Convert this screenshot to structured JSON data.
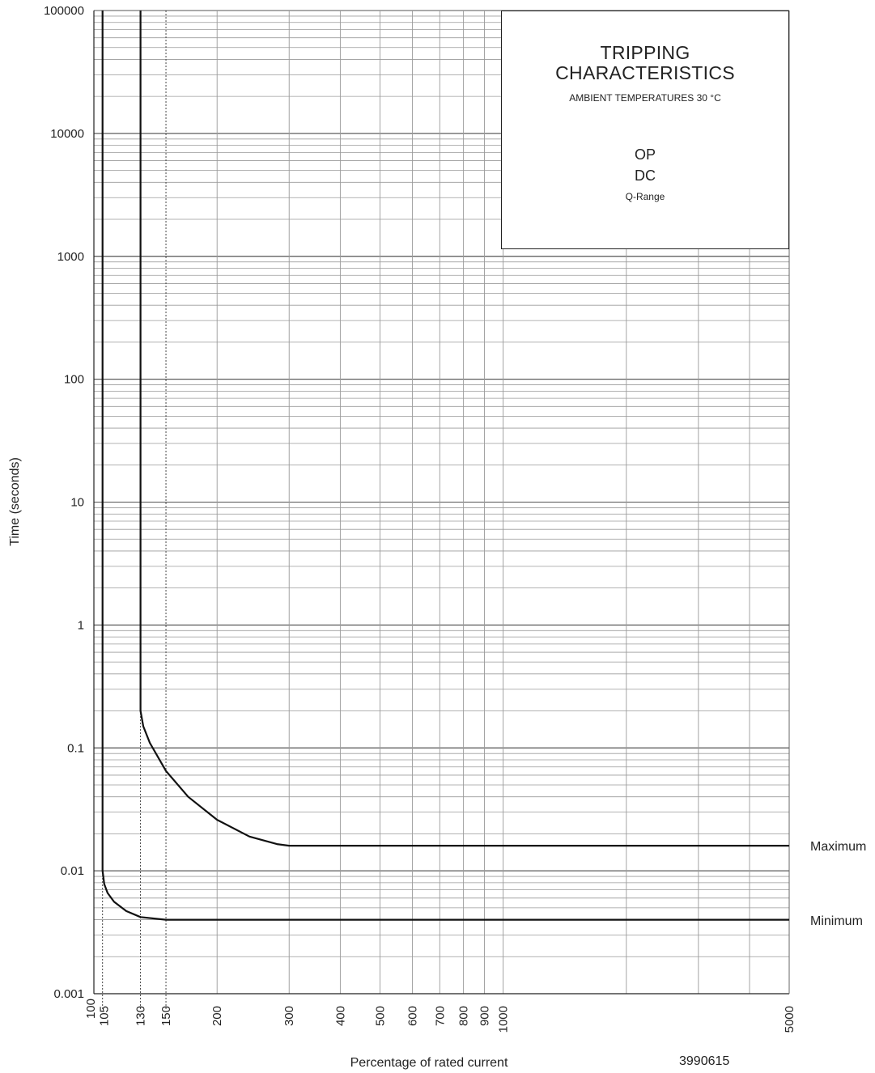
{
  "chart_data": {
    "type": "line",
    "xscale": "log",
    "yscale": "log",
    "xlim": [
      100,
      5000
    ],
    "ylim": [
      0.001,
      100000
    ],
    "grid": true,
    "xlabel": "Percentage of rated current",
    "ylabel": "Time (seconds)",
    "x_ticks": [
      "100",
      "105",
      "130",
      "150",
      "200",
      "300",
      "400",
      "500",
      "600",
      "700",
      "800",
      "900",
      "1000",
      "5000"
    ],
    "y_ticks": [
      "0.001",
      "0.01",
      "0.1",
      "1",
      "10",
      "100",
      "1000",
      "10000",
      "100000"
    ],
    "reference_lines_x": [
      105,
      130,
      150
    ],
    "series": [
      {
        "name": "Maximum",
        "points": [
          [
            130,
            100000
          ],
          [
            130,
            1
          ],
          [
            130,
            0.2
          ],
          [
            132,
            0.15
          ],
          [
            137,
            0.11
          ],
          [
            150,
            0.065
          ],
          [
            170,
            0.04
          ],
          [
            200,
            0.026
          ],
          [
            240,
            0.019
          ],
          [
            280,
            0.0165
          ],
          [
            300,
            0.016
          ],
          [
            500,
            0.016
          ],
          [
            1000,
            0.016
          ],
          [
            5000,
            0.016
          ]
        ]
      },
      {
        "name": "Minimum",
        "points": [
          [
            105,
            100000
          ],
          [
            105,
            0.1
          ],
          [
            105,
            0.01
          ],
          [
            106,
            0.0078
          ],
          [
            108,
            0.0066
          ],
          [
            112,
            0.0056
          ],
          [
            120,
            0.0047
          ],
          [
            130,
            0.0042
          ],
          [
            150,
            0.004
          ],
          [
            200,
            0.004
          ],
          [
            500,
            0.004
          ],
          [
            1000,
            0.004
          ],
          [
            5000,
            0.004
          ]
        ]
      }
    ],
    "annotation": {
      "title_line1": "TRIPPING",
      "title_line2": "CHARACTERISTICS",
      "subtitle": "AMBIENT TEMPERATURES 30 °C",
      "line_op": "OP",
      "line_dc": "DC",
      "range": "Q-Range"
    },
    "document_id": "3990615"
  }
}
